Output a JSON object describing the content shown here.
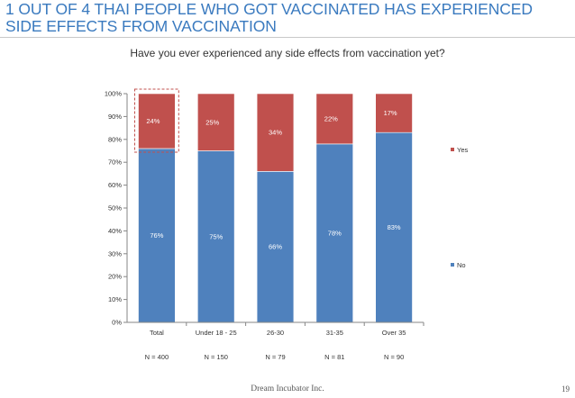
{
  "slide": {
    "title": "1 OUT OF 4 THAI PEOPLE WHO GOT VACCINATED HAS EXPERIENCED SIDE EFFECTS FROM VACCINATION",
    "footer": "Dream Incubator Inc.",
    "page_number": "19"
  },
  "colors": {
    "no": "#4f81bd",
    "yes": "#c0504d",
    "title": "#3a7abf",
    "highlight": "#c0504d"
  },
  "chart_data": {
    "type": "bar",
    "stacked": true,
    "percent": true,
    "title": "Have you ever experienced any side effects from vaccination yet?",
    "categories": [
      "Total",
      "Under 18 - 25",
      "26-30",
      "31-35",
      "Over 35"
    ],
    "sample_sizes": [
      "N = 400",
      "N = 150",
      "N = 79",
      "N = 81",
      "N = 90"
    ],
    "series": [
      {
        "name": "No",
        "values": [
          76,
          75,
          66,
          78,
          83
        ],
        "labels": [
          "76%",
          "75%",
          "66%",
          "78%",
          "83%"
        ]
      },
      {
        "name": "Yes",
        "values": [
          24,
          25,
          34,
          22,
          17
        ],
        "labels": [
          "24%",
          "25%",
          "34%",
          "22%",
          "17%"
        ]
      }
    ],
    "yticks": [
      "0%",
      "10%",
      "20%",
      "30%",
      "40%",
      "50%",
      "60%",
      "70%",
      "80%",
      "90%",
      "100%"
    ],
    "ylim": [
      0,
      100
    ],
    "legend": [
      "Yes",
      "No"
    ],
    "highlighted_category": "Total"
  }
}
